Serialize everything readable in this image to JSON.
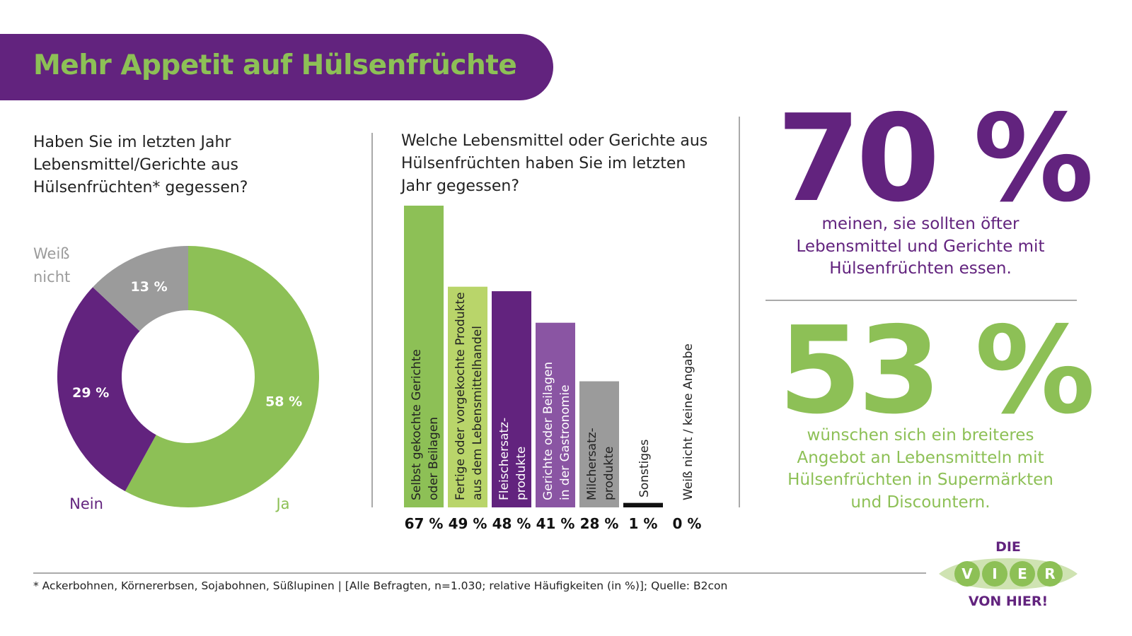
{
  "title": "Mehr Appetit auf Hülsenfrüchte",
  "colors": {
    "purple": "#62237e",
    "green": "#8dc056",
    "light_green": "#b9d56a",
    "light_purple": "#8a55a3",
    "gray": "#9b9b9b",
    "black": "#111111"
  },
  "chart_data": [
    {
      "type": "pie",
      "variant": "donut",
      "title": "Haben Sie im letzten Jahr Lebensmittel/Gerichte aus Hülsenfrüchten* gegessen?",
      "categories": [
        "Ja",
        "Nein",
        "Weiß nicht"
      ],
      "values": [
        58,
        29,
        13
      ],
      "value_labels": [
        "58 %",
        "29 %",
        "13 %"
      ],
      "colors": [
        "#8dc056",
        "#62237e",
        "#9b9b9b"
      ]
    },
    {
      "type": "bar",
      "title": "Welche Lebensmittel oder Gerichte aus Hülsenfrüchten haben Sie im letzten Jahr gegessen?",
      "categories": [
        [
          "Selbst gekochte Gerichte",
          "oder Beilagen"
        ],
        [
          "Fertige oder vorgekochte Produkte",
          "aus dem Lebensmittelhandel"
        ],
        [
          "Fleischersatz-",
          "produkte"
        ],
        [
          "Gerichte oder Beilagen",
          "in der Gastronomie"
        ],
        [
          "Milchersatz-",
          "produkte"
        ],
        [
          "Sonstiges"
        ],
        [
          "Weiß nicht / keine Angabe"
        ]
      ],
      "values": [
        67,
        49,
        48,
        41,
        28,
        1,
        0
      ],
      "value_labels": [
        "67 %",
        "49 %",
        "48 %",
        "41 %",
        "28 %",
        "1 %",
        "0 %"
      ],
      "colors": [
        "#8dc056",
        "#b9d56a",
        "#62237e",
        "#8a55a3",
        "#9b9b9b",
        "#111111",
        "#111111"
      ],
      "label_colors": [
        "#222222",
        "#222222",
        "#ffffff",
        "#ffffff",
        "#222222",
        "#222222",
        "#222222"
      ],
      "ylim": [
        0,
        67
      ]
    }
  ],
  "stats": [
    {
      "value": "70 %",
      "text": [
        "meinen, sie sollten öfter",
        "Lebensmittel und Gerichte mit",
        "Hülsenfrüchten essen."
      ]
    },
    {
      "value": "53 %",
      "text": [
        "wünschen sich ein breiteres",
        "Angebot an Lebensmitteln mit",
        "Hülsenfrüchten in Supermärkten",
        "und Discountern."
      ]
    }
  ],
  "footnote": "* Ackerbohnen, Körnererbsen, Sojabohnen, Süßlupinen | [Alle Befragten, n=1.030; relative Häufigkeiten (in %)]; Quelle: B2con",
  "logo": {
    "top": "DIE",
    "letters": [
      "V",
      "I",
      "E",
      "R"
    ],
    "bottom": "VON HIER!"
  }
}
